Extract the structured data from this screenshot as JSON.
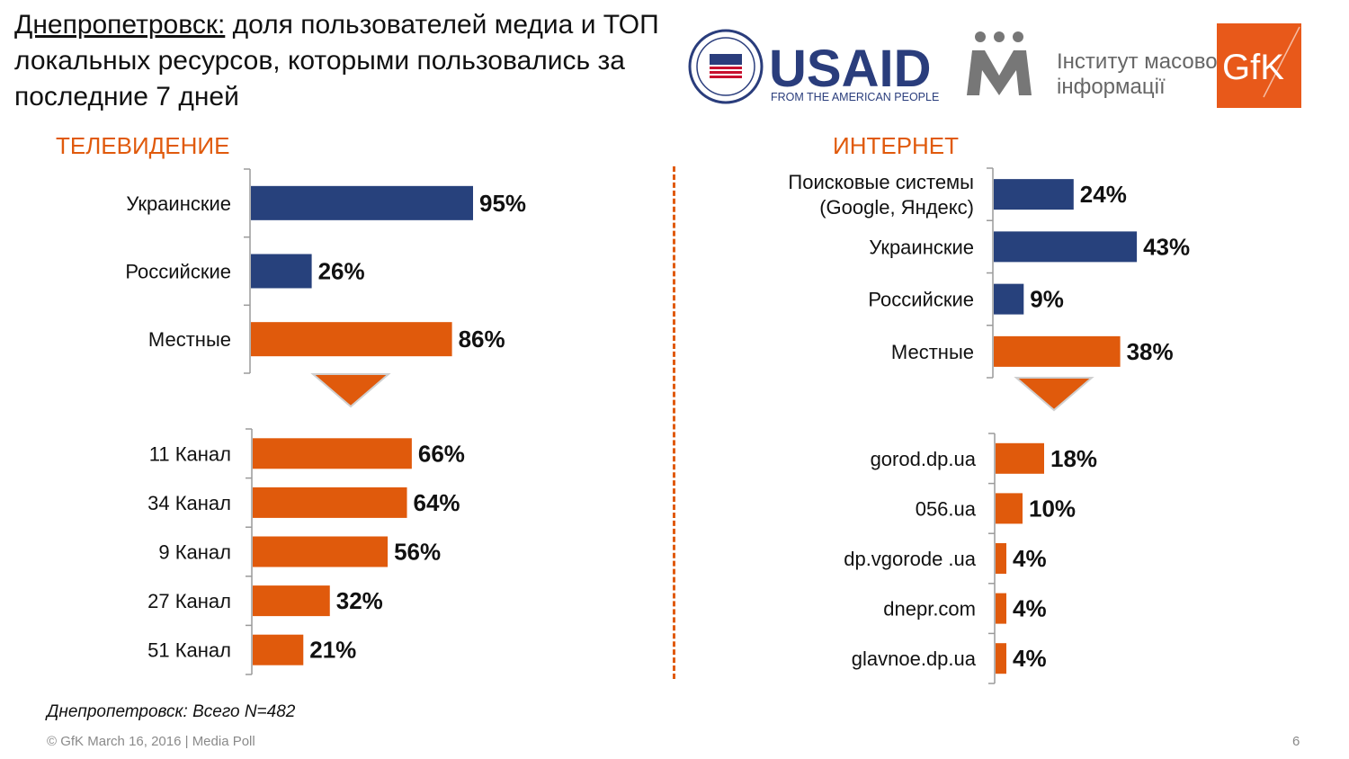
{
  "title": {
    "city": "Днепропетровск:",
    "rest": " доля пользователей медиа и ТОП локальных ресурсов, которыми пользовались за последние 7 дней"
  },
  "logos": {
    "usaid_text": "USAID",
    "usaid_sub": "FROM THE AMERICAN PEOPLE",
    "imi_line1": "Інститут масової",
    "imi_line2": "інформації",
    "gfk": "GfK"
  },
  "colors": {
    "blue": "#27417c",
    "orange": "#e05a0c",
    "accent": "#e05a0c"
  },
  "chart_data": [
    {
      "type": "bar",
      "title": "ТЕЛЕВИДЕНИЕ",
      "categories": [
        "Украинские",
        "Российские",
        "Местные"
      ],
      "values": [
        95,
        26,
        86
      ],
      "labels": [
        "95%",
        "26%",
        "86%"
      ],
      "colors": [
        "blue",
        "blue",
        "orange"
      ],
      "unit": "%"
    },
    {
      "type": "bar",
      "categories": [
        "11 Канал",
        "34 Канал",
        "9 Канал",
        "27 Канал",
        "51 Канал"
      ],
      "values": [
        66,
        64,
        56,
        32,
        21
      ],
      "labels": [
        "66%",
        "64%",
        "56%",
        "32%",
        "21%"
      ],
      "colors": [
        "orange",
        "orange",
        "orange",
        "orange",
        "orange"
      ],
      "unit": "%"
    },
    {
      "type": "bar",
      "title": "ИНТЕРНЕТ",
      "categories": [
        [
          "Поисковые системы",
          "(Google, Яндекс)"
        ],
        "Украинские",
        "Российские",
        "Местные"
      ],
      "values": [
        24,
        43,
        9,
        38
      ],
      "labels": [
        "24%",
        "43%",
        "9%",
        "38%"
      ],
      "colors": [
        "blue",
        "blue",
        "blue",
        "orange"
      ],
      "unit": "%"
    },
    {
      "type": "bar",
      "categories": [
        "gorod.dp.ua",
        "056.ua",
        "dp.vgorode .ua",
        "dnepr.com",
        "glavnoe.dp.ua"
      ],
      "values": [
        18,
        10,
        4,
        4,
        4
      ],
      "labels": [
        "18%",
        "10%",
        "4%",
        "4%",
        "4%"
      ],
      "colors": [
        "orange",
        "orange",
        "orange",
        "orange",
        "orange"
      ],
      "unit": "%"
    }
  ],
  "note": "Днепропетровск: Всего N=482",
  "footer": "© GfK March 16, 2016 | Media Poll",
  "page_number": "6"
}
